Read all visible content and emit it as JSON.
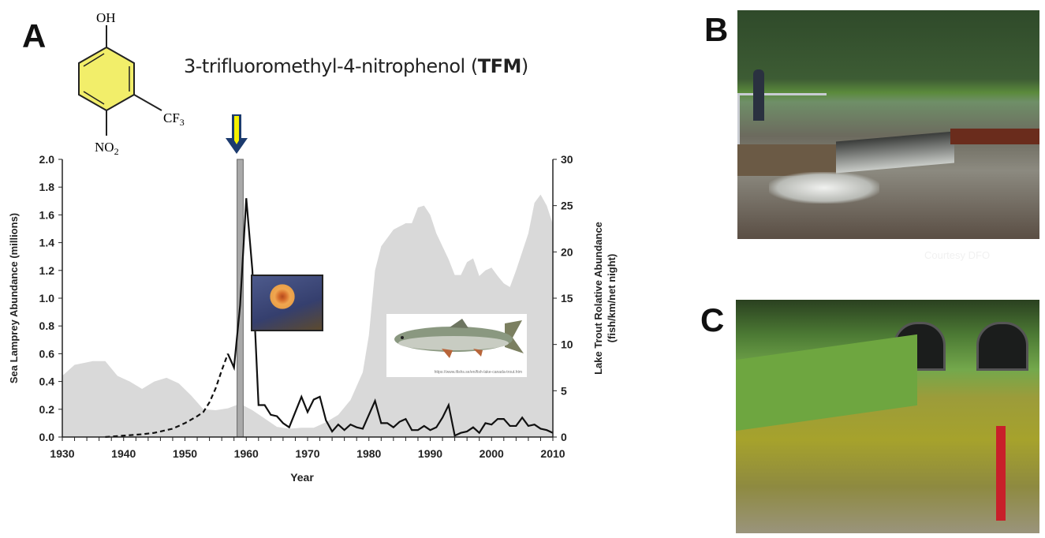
{
  "panels": {
    "a": "A",
    "b": "B",
    "c": "C"
  },
  "compound": {
    "name": "3-trifluoromethyl-4-nitrophenol (",
    "abbr": "TFM",
    "close": ")",
    "groups": {
      "top": "OH",
      "side": "CF",
      "side_sub": "3",
      "bottom": "NO",
      "bottom_sub": "2"
    },
    "ring_color": "#f2ee6a"
  },
  "courtesy": "Courtesy DFO",
  "fish_credit": "https://www.ifishs.se/en/fish-lake-canada-trout.htm",
  "chart_data": {
    "type": "line",
    "xlabel": "Year",
    "ylabel": "Sea Lamprey Abundance (millions)",
    "y2label_line1": "Lake Trout Rolative Abundance",
    "y2label_line2": "(fish/km/net night)",
    "xlim": [
      1930,
      2010
    ],
    "ylim": [
      0,
      2.0
    ],
    "y2lim": [
      0,
      30
    ],
    "xticks": [
      "1930",
      "1940",
      "1950",
      "1960",
      "1970",
      "1980",
      "1990",
      "2000",
      "2010"
    ],
    "yticks": [
      "0.0",
      "0.2",
      "0.4",
      "0.6",
      "0.8",
      "1.0",
      "1.2",
      "1.4",
      "1.6",
      "1.8",
      "2.0"
    ],
    "y2ticks": [
      "0",
      "5",
      "10",
      "15",
      "20",
      "25",
      "30"
    ],
    "tfm_start_band": [
      1958.5,
      1959.5
    ],
    "series": [
      {
        "axis": "right",
        "style": "area",
        "color": "#d9d9d9",
        "x": [
          1930,
          1932,
          1935,
          1937,
          1939,
          1941,
          1943,
          1945,
          1947,
          1949,
          1951,
          1953,
          1955,
          1957,
          1959,
          1961,
          1963,
          1965,
          1967,
          1969,
          1971,
          1973,
          1975,
          1977,
          1979,
          1980,
          1981,
          1982,
          1984,
          1986,
          1987,
          1988,
          1989,
          1990,
          1991,
          1993,
          1994,
          1995,
          1996,
          1997,
          1998,
          1999,
          2000,
          2001,
          2002,
          2003,
          2004,
          2005,
          2006,
          2007,
          2008,
          2009,
          2010
        ],
        "y": [
          6.6,
          7.8,
          8.2,
          8.2,
          6.6,
          6.0,
          5.2,
          6.0,
          6.4,
          5.8,
          4.5,
          3.0,
          2.9,
          3.1,
          3.6,
          2.9,
          2.0,
          1.1,
          0.9,
          1.0,
          1.0,
          1.6,
          2.4,
          4.0,
          7.0,
          11.0,
          18.0,
          20.6,
          22.4,
          23.1,
          23.1,
          24.8,
          25.0,
          24.0,
          22.0,
          19.2,
          17.5,
          17.5,
          18.9,
          19.3,
          17.4,
          18.0,
          18.3,
          17.4,
          16.6,
          16.2,
          18.0,
          20.0,
          22.0,
          25.3,
          26.2,
          25.0,
          23.0
        ]
      },
      {
        "axis": "left",
        "style": "dashed",
        "color": "#111111",
        "x": [
          1937,
          1940,
          1943,
          1945,
          1948,
          1950,
          1952,
          1953,
          1954,
          1955,
          1956,
          1957
        ],
        "y": [
          0.0,
          0.01,
          0.02,
          0.03,
          0.06,
          0.1,
          0.15,
          0.18,
          0.25,
          0.35,
          0.48,
          0.6
        ]
      },
      {
        "axis": "left",
        "style": "solid",
        "color": "#111111",
        "x": [
          1957,
          1958,
          1959,
          1960,
          1961,
          1962,
          1963,
          1964,
          1965,
          1966,
          1967,
          1968,
          1969,
          1970,
          1971,
          1972,
          1973,
          1974,
          1975,
          1976,
          1977,
          1978,
          1979,
          1980,
          1981,
          1982,
          1983,
          1984,
          1985,
          1986,
          1987,
          1988,
          1989,
          1990,
          1991,
          1992,
          1993,
          1994,
          1995,
          1996,
          1997,
          1998,
          1999,
          2000,
          2001,
          2002,
          2003,
          2004,
          2005,
          2006,
          2007,
          2008,
          2009,
          2010
        ],
        "y": [
          0.6,
          0.5,
          0.95,
          1.72,
          1.2,
          0.23,
          0.23,
          0.16,
          0.15,
          0.1,
          0.07,
          0.18,
          0.29,
          0.18,
          0.27,
          0.29,
          0.12,
          0.04,
          0.09,
          0.05,
          0.09,
          0.07,
          0.06,
          0.16,
          0.26,
          0.1,
          0.1,
          0.07,
          0.11,
          0.13,
          0.05,
          0.05,
          0.08,
          0.05,
          0.07,
          0.14,
          0.23,
          0.01,
          0.03,
          0.04,
          0.07,
          0.03,
          0.1,
          0.09,
          0.13,
          0.13,
          0.08,
          0.08,
          0.14,
          0.08,
          0.09,
          0.06,
          0.05,
          0.03
        ]
      }
    ]
  }
}
